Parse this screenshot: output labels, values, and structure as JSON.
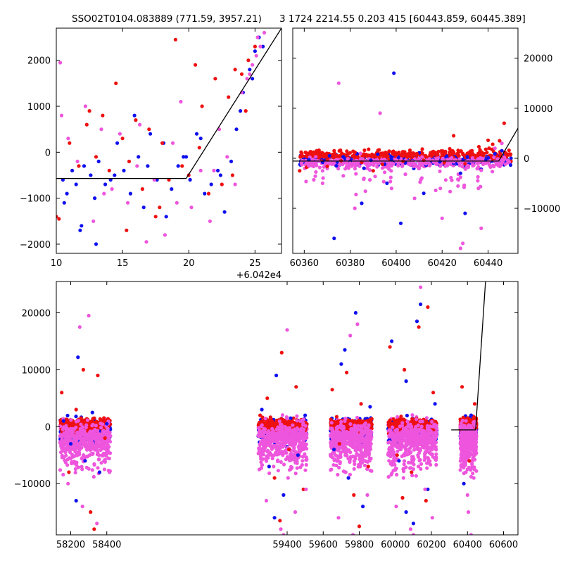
{
  "title": {
    "left": "SSO02T0104.083889 (771.59, 3957.21)",
    "right": "3 1724 2214.55 0.203 415 [60443.859, 60445.389]"
  },
  "colors": {
    "blue": "#1010ee",
    "red": "#ee1010",
    "pink": "#ee55dd",
    "line": "#000000"
  },
  "chart_data": [
    {
      "id": "top-left",
      "type": "scatter",
      "xlim": [
        60430,
        60447
      ],
      "ylim": [
        -2200,
        2700
      ],
      "xticks": [
        60430,
        60435,
        60440,
        60445
      ],
      "xtick_labels": [
        "10",
        "15",
        "20",
        "25"
      ],
      "x_offset_label": "+6.042e4",
      "yticks": [
        -2000,
        -1000,
        0,
        1000,
        2000
      ],
      "ytick_labels": [
        "−2000",
        "−1000",
        "0",
        "1000",
        "2000"
      ],
      "y_axis_side": "left",
      "grid": false,
      "model_line": {
        "x": [
          60430,
          60439.8,
          60447
        ],
        "y": [
          -570,
          -570,
          2700
        ]
      },
      "series": [
        {
          "color": "blue",
          "x": [
            60430.5,
            60430.8,
            60431.2,
            60431.5,
            60431.8,
            60432.1,
            60432.6,
            60432.9,
            60433.2,
            60433.7,
            60434.1,
            60434.6,
            60435.1,
            60435.6,
            60436.2,
            60436.6,
            60437.1,
            60437.6,
            60438.1,
            60438.7,
            60439.2,
            60439.6,
            60440.1,
            60440.6,
            60441.2,
            60441.7,
            60442.2,
            60442.7,
            60443.2,
            60443.6,
            60444.1,
            60444.6,
            60445.0,
            60445.3,
            60445.6,
            60430.6,
            60431.9,
            60433.0,
            60434.4,
            60435.9,
            60436.9,
            60438.3,
            60439.8,
            60440.9,
            60442.4,
            60443.9,
            60444.8
          ],
          "y": [
            -600,
            -900,
            -400,
            -700,
            -1700,
            -300,
            -500,
            -1000,
            -200,
            -700,
            -600,
            200,
            -400,
            -900,
            -100,
            -1200,
            400,
            -600,
            200,
            -800,
            -300,
            -100,
            -600,
            400,
            -900,
            -700,
            -400,
            -1300,
            -200,
            500,
            1300,
            1800,
            2200,
            2500,
            2300,
            -1100,
            -1600,
            -2000,
            -500,
            800,
            -300,
            -1400,
            -100,
            300,
            -500,
            900,
            1600
          ]
        },
        {
          "color": "red",
          "x": [
            60430.2,
            60431.0,
            60431.7,
            60432.3,
            60433.0,
            60433.5,
            60434.0,
            60434.5,
            60435.0,
            60435.5,
            60436.0,
            60436.5,
            60437.0,
            60437.5,
            60438.0,
            60438.5,
            60439.0,
            60439.5,
            60440.0,
            60440.5,
            60441.0,
            60441.5,
            60442.0,
            60442.5,
            60443.0,
            60443.5,
            60444.0,
            60444.5,
            60445.0,
            60430.0,
            60432.5,
            60435.3,
            60437.8,
            60440.8,
            60443.3,
            60444.3
          ],
          "y": [
            -1450,
            200,
            -300,
            600,
            -100,
            800,
            -400,
            1500,
            300,
            -200,
            700,
            -800,
            500,
            -1400,
            200,
            -600,
            2450,
            -300,
            -500,
            1900,
            1000,
            -900,
            1600,
            -700,
            1200,
            1800,
            1700,
            2000,
            2300,
            -1400,
            900,
            -1700,
            -1200,
            100,
            -500,
            900
          ]
        },
        {
          "color": "pink",
          "x": [
            60430.3,
            60430.9,
            60431.6,
            60432.2,
            60432.8,
            60433.4,
            60434.2,
            60434.8,
            60435.4,
            60436.1,
            60436.8,
            60437.4,
            60438.2,
            60438.8,
            60439.4,
            60440.2,
            60440.9,
            60441.6,
            60442.3,
            60442.9,
            60443.5,
            60444.0,
            60444.4,
            60444.8,
            60445.1,
            60445.4,
            60445.7,
            60430.4,
            60433.6,
            60436.3,
            60439.1,
            60441.9,
            60444.6,
            60445.2
          ],
          "y": [
            1950,
            300,
            -200,
            1000,
            -1500,
            500,
            -800,
            400,
            -1100,
            -300,
            -1950,
            -600,
            -1800,
            200,
            1100,
            -1200,
            -400,
            -1500,
            500,
            -100,
            -700,
            1300,
            1600,
            1900,
            2100,
            2300,
            2600,
            800,
            -900,
            600,
            -1100,
            -400,
            1700,
            2500
          ]
        }
      ]
    },
    {
      "id": "top-right",
      "type": "scatter",
      "xlim": [
        60355,
        60453
      ],
      "ylim": [
        -19000,
        26000
      ],
      "xticks": [
        60360,
        60380,
        60400,
        60420,
        60440
      ],
      "xtick_labels": [
        "60360",
        "60380",
        "60400",
        "60420",
        "60440"
      ],
      "yticks": [
        -10000,
        0,
        10000,
        20000
      ],
      "ytick_labels": [
        "−10000",
        "0",
        "10000",
        "20000"
      ],
      "y_axis_side": "right",
      "grid": false,
      "model_line": {
        "x": [
          60355,
          60444.6,
          60453
        ],
        "y": [
          -570,
          -570,
          6000
        ]
      },
      "series": [
        {
          "color": "blue",
          "x": [
            60362,
            60365,
            60368,
            60371,
            60374,
            60377,
            60380,
            60383,
            60386,
            60389,
            60392,
            60395,
            60398,
            60401,
            60404,
            60407,
            60410,
            60413,
            60416,
            60419,
            60422,
            60425,
            60428,
            60431,
            60434,
            60437,
            60440,
            60443,
            60446,
            60399,
            60385,
            60402,
            60373,
            60396,
            60430,
            60412
          ],
          "y": [
            -300,
            200,
            -800,
            500,
            -1500,
            300,
            -600,
            900,
            -2000,
            -400,
            800,
            -1200,
            -300,
            200,
            -900,
            -500,
            1100,
            -1400,
            -200,
            -700,
            400,
            -1000,
            -3000,
            300,
            -500,
            -2200,
            100,
            900,
            1500,
            17000,
            -9000,
            -13000,
            -16000,
            -5000,
            -11000,
            -7000
          ]
        },
        {
          "color": "red",
          "x": [
            60358,
            60361,
            60364,
            60367,
            60370,
            60373,
            60376,
            60379,
            60382,
            60385,
            60388,
            60391,
            60394,
            60397,
            60400,
            60403,
            60406,
            60409,
            60412,
            60415,
            60418,
            60421,
            60424,
            60427,
            60430,
            60433,
            60436,
            60439,
            60442,
            60445,
            60447,
            60370,
            60390,
            60410,
            60425,
            60440
          ],
          "y": [
            -2500,
            -1800,
            500,
            1000,
            -300,
            1500,
            -500,
            800,
            1200,
            -800,
            1800,
            300,
            -1200,
            1400,
            600,
            -600,
            1600,
            900,
            -400,
            1100,
            700,
            -900,
            1300,
            500,
            -1100,
            1500,
            2300,
            1800,
            2800,
            3500,
            7000,
            -1600,
            -2500,
            -2000,
            4500,
            3600
          ]
        },
        {
          "color": "pink",
          "x": [
            60359,
            60362,
            60365,
            60368,
            60371,
            60374,
            60377,
            60380,
            60383,
            60386,
            60389,
            60392,
            60395,
            60398,
            60401,
            60404,
            60407,
            60410,
            60413,
            60416,
            60419,
            60422,
            60425,
            60428,
            60431,
            60434,
            60437,
            60440,
            60443,
            60446,
            60375,
            60393,
            60408,
            60420,
            60437,
            60428,
            60429,
            60398,
            60368,
            60382
          ],
          "y": [
            -500,
            -1500,
            300,
            -2500,
            -800,
            -300,
            -3500,
            -1000,
            -500,
            -4000,
            -1200,
            -700,
            -2800,
            -1500,
            -900,
            -3200,
            -600,
            -2000,
            -1100,
            -400,
            -2600,
            -1300,
            -700,
            -3800,
            -1500,
            -500,
            -2400,
            -900,
            2000,
            3000,
            15000,
            9000,
            -8000,
            -12000,
            -14000,
            -18000,
            -17000,
            -6000,
            -5000,
            -10000
          ]
        }
      ]
    },
    {
      "id": "bottom",
      "type": "scatter",
      "xlim": [
        58120,
        60680
      ],
      "ylim": [
        -19000,
        25500
      ],
      "xticks": [
        58200,
        58400,
        59400,
        59600,
        59800,
        60000,
        60200,
        60400,
        60600
      ],
      "xtick_labels": [
        "58200",
        "58400",
        "59400",
        "59600",
        "59800",
        "60000",
        "60200",
        "60400",
        "60600"
      ],
      "yticks": [
        -10000,
        0,
        10000,
        20000
      ],
      "ytick_labels": [
        "−10000",
        "0",
        "10000",
        "20000"
      ],
      "y_axis_side": "left",
      "grid": false,
      "model_line": {
        "x": [
          60310,
          60445,
          60500
        ],
        "y": [
          -570,
          -570,
          25500
        ]
      },
      "clusters": [
        {
          "x_range": [
            58140,
            58420
          ],
          "spread": [
            -16000,
            18000
          ]
        },
        {
          "x_range": [
            59240,
            59510
          ],
          "spread": [
            -19000,
            20000
          ]
        },
        {
          "x_range": [
            59640,
            59870
          ],
          "spread": [
            -19000,
            22000
          ]
        },
        {
          "x_range": [
            59960,
            60230
          ],
          "spread": [
            -19000,
            25000
          ]
        },
        {
          "x_range": [
            60360,
            60450
          ],
          "spread": [
            -19000,
            18000
          ]
        }
      ],
      "series": [
        {
          "color": "blue",
          "x": [
            58160,
            58200,
            58240,
            58280,
            58320,
            58360,
            58400,
            59260,
            59300,
            59340,
            59380,
            59420,
            59460,
            59500,
            59660,
            59700,
            59740,
            59780,
            59820,
            59860,
            59980,
            60020,
            60060,
            60100,
            60140,
            60180,
            60220,
            60380,
            60420,
            58230,
            59330,
            59720,
            60060,
            60120
          ],
          "y": [
            1000,
            -3000,
            12200,
            -6000,
            2500,
            -8000,
            500,
            3000,
            -7000,
            9000,
            -12000,
            1500,
            -5000,
            2000,
            -4000,
            11000,
            -9000,
            20000,
            -14000,
            3500,
            15000,
            -6000,
            8000,
            -17000,
            21500,
            -11000,
            4000,
            -10000,
            2000,
            -13000,
            -16000,
            13500,
            -15000,
            18500
          ]
        },
        {
          "color": "red",
          "x": [
            58150,
            58190,
            58230,
            58270,
            58310,
            58350,
            58390,
            59250,
            59290,
            59330,
            59370,
            59410,
            59450,
            59490,
            59650,
            59690,
            59730,
            59770,
            59810,
            59850,
            59970,
            60010,
            60050,
            60090,
            60130,
            60170,
            60210,
            60370,
            60410,
            60440,
            58330,
            59360,
            59800,
            60040,
            60180
          ],
          "y": [
            6000,
            -8000,
            3000,
            10000,
            -15000,
            9000,
            -2000,
            2000,
            5000,
            -9000,
            13000,
            -4000,
            7000,
            -11000,
            6500,
            -3000,
            9500,
            -12000,
            4000,
            -7000,
            14000,
            -5000,
            10000,
            -8000,
            17500,
            -13000,
            6000,
            7000,
            -6000,
            4000,
            -18000,
            -16500,
            -17500,
            -12500,
            21000
          ]
        },
        {
          "color": "pink",
          "x": [
            58145,
            58185,
            58225,
            58265,
            58305,
            58345,
            58385,
            58415,
            59245,
            59285,
            59325,
            59365,
            59405,
            59445,
            59485,
            59505,
            59645,
            59685,
            59725,
            59765,
            59805,
            59845,
            59865,
            59965,
            60005,
            60045,
            60085,
            60125,
            60165,
            60205,
            60225,
            60365,
            60405,
            60435,
            58300,
            58250,
            59400,
            59380,
            59750,
            59790,
            60100,
            60140,
            60420,
            60400
          ],
          "y": [
            -3000,
            -10000,
            -2000,
            -14000,
            -5000,
            -17000,
            -6000,
            -8000,
            -4000,
            -13000,
            -7000,
            -18000,
            -9000,
            -15000,
            -6000,
            -11000,
            -5000,
            -16000,
            -8000,
            -19000,
            -7000,
            -12000,
            -3000,
            -6000,
            -14000,
            -9000,
            -18000,
            -5000,
            -11000,
            -16000,
            -4000,
            -7000,
            -15000,
            -9000,
            19500,
            17500,
            17000,
            -19000,
            16000,
            18000,
            -19000,
            24500,
            -19000,
            -12000
          ]
        }
      ]
    }
  ]
}
